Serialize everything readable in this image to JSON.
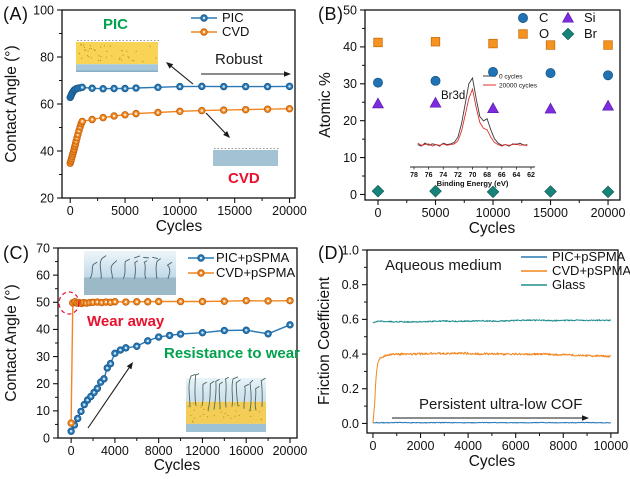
{
  "chart_data": [
    {
      "type": "line",
      "panel_label": "(A)",
      "xlabel": "Cycles",
      "ylabel": "Contact Angle (°)",
      "xlim": [
        -750,
        20500
      ],
      "ylim": [
        20,
        100
      ],
      "x_ticks": [
        0,
        5000,
        10000,
        15000,
        20000
      ],
      "x_tick_labels": [
        "0",
        "5000",
        "10000",
        "15000",
        "20000"
      ],
      "y_ticks": [
        20,
        40,
        60,
        80,
        100
      ],
      "y_tick_labels": [
        "20",
        "40",
        "60",
        "80",
        "100"
      ],
      "legend_position": "top-right-inside",
      "series": [
        {
          "name": "PIC",
          "style": "line-marker",
          "color": "#2878b5",
          "edge": "#1a5a8c",
          "center": "#cfe5f6",
          "points": [
            [
              0,
              62.8
            ],
            [
              60,
              63.4
            ],
            [
              120,
              64.1
            ],
            [
              200,
              64.8
            ],
            [
              280,
              65.4
            ],
            [
              360,
              65.9
            ],
            [
              450,
              66.2
            ],
            [
              550,
              66.5
            ],
            [
              700,
              66.7
            ],
            [
              900,
              66.9
            ],
            [
              1100,
              67.1
            ],
            [
              2000,
              66.7
            ],
            [
              3000,
              66.5
            ],
            [
              4000,
              66.6
            ],
            [
              5000,
              66.6
            ],
            [
              6000,
              66.8
            ],
            [
              8000,
              67.1
            ],
            [
              10000,
              67.4
            ],
            [
              12000,
              67.5
            ],
            [
              14000,
              67.4
            ],
            [
              16000,
              67.4
            ],
            [
              18000,
              67.4
            ],
            [
              20000,
              67.5
            ]
          ]
        },
        {
          "name": "CVD",
          "style": "line-marker",
          "color": "#f2861f",
          "edge": "#c05f0a",
          "center": "#fdecd8",
          "points": [
            [
              0,
              34.8
            ],
            [
              60,
              35.8
            ],
            [
              120,
              36.8
            ],
            [
              180,
              37.8
            ],
            [
              240,
              38.8
            ],
            [
              300,
              39.8
            ],
            [
              360,
              40.8
            ],
            [
              420,
              41.9
            ],
            [
              480,
              43
            ],
            [
              540,
              44.2
            ],
            [
              620,
              45.6
            ],
            [
              700,
              47
            ],
            [
              800,
              48.6
            ],
            [
              900,
              50.2
            ],
            [
              1000,
              51.6
            ],
            [
              1100,
              52.6
            ],
            [
              2000,
              53.4
            ],
            [
              3000,
              54.2
            ],
            [
              4000,
              54.9
            ],
            [
              5000,
              55.4
            ],
            [
              6000,
              55.9
            ],
            [
              8000,
              56.4
            ],
            [
              10000,
              56.9
            ],
            [
              12000,
              57.2
            ],
            [
              14000,
              57.4
            ],
            [
              16000,
              57.6
            ],
            [
              18000,
              57.8
            ],
            [
              20000,
              58
            ]
          ]
        }
      ],
      "annotations": [
        {
          "id": "a-pic",
          "text": "PIC",
          "color": "#00a24d"
        },
        {
          "id": "a-robust",
          "text": "Robust",
          "color": "#1a1a1a"
        },
        {
          "id": "a-cvd",
          "text": "CVD",
          "color": "#e8112d"
        }
      ]
    },
    {
      "type": "scatter",
      "panel_label": "(B)",
      "xlabel": "Cycles",
      "ylabel": "Atomic %",
      "xlim": [
        -1130,
        21040
      ],
      "ylim": [
        -1.5,
        50
      ],
      "x_ticks": [
        0,
        5000,
        10000,
        15000,
        20000
      ],
      "x_tick_labels": [
        "0",
        "5000",
        "10000",
        "15000",
        "20000"
      ],
      "y_ticks": [
        0,
        10,
        20,
        30,
        40,
        50
      ],
      "y_tick_labels": [
        "0",
        "10",
        "20",
        "30",
        "40",
        "50"
      ],
      "legend_position": "top-right-inside-grid",
      "series": [
        {
          "name": "C",
          "style": "scatter",
          "marker": "circle",
          "color": "#1f72b4",
          "edge": "#14507e",
          "x": [
            0,
            5000,
            10000,
            15000,
            20000
          ],
          "y": [
            30.3,
            30.8,
            33.2,
            32.9,
            32.3
          ]
        },
        {
          "name": "O",
          "style": "scatter",
          "marker": "square",
          "color": "#f6921e",
          "edge": "#c26708",
          "x": [
            0,
            5000,
            10000,
            15000,
            20000
          ],
          "y": [
            41.2,
            41.4,
            40.9,
            40.5,
            40.5
          ]
        },
        {
          "name": "Si",
          "style": "scatter",
          "marker": "triangle",
          "color": "#7d2de0",
          "edge": "#5a1bab",
          "x": [
            0,
            5000,
            10000,
            15000,
            20000
          ],
          "y": [
            24.6,
            24.8,
            23.3,
            23.2,
            24.0
          ]
        },
        {
          "name": "Br",
          "style": "scatter",
          "marker": "diamond",
          "color": "#18837a",
          "edge": "#0f5c55",
          "x": [
            0,
            5000,
            10000,
            15000,
            20000
          ],
          "y": [
            0.9,
            0.9,
            0.7,
            0.8,
            0.7
          ]
        }
      ],
      "annotations": [],
      "inset": {
        "label": "Br3d",
        "xlabel": "Binding Energy (eV)",
        "x_ticks": [
          78,
          76,
          74,
          72,
          70,
          68,
          66,
          64,
          62
        ],
        "legend": [
          "0 cycles",
          "20000 cycles"
        ],
        "colors": [
          "#3a3a3a",
          "#e03030"
        ],
        "x_start": 77.5,
        "x_step": -0.5,
        "series0": [
          0.1,
          0.08,
          0.12,
          0.09,
          0.11,
          0.1,
          0.08,
          0.12,
          0.1,
          0.11,
          0.13,
          0.2,
          0.38,
          0.65,
          0.92,
          1.0,
          0.72,
          0.48,
          0.42,
          0.45,
          0.3,
          0.18,
          0.12,
          0.09,
          0.1,
          0.08,
          0.11,
          0.1,
          0.12,
          0.09,
          0.1
        ],
        "series1": [
          0.12,
          0.09,
          0.1,
          0.11,
          0.08,
          0.1,
          0.09,
          0.11,
          0.09,
          0.1,
          0.11,
          0.15,
          0.28,
          0.5,
          0.72,
          0.85,
          0.6,
          0.4,
          0.32,
          0.3,
          0.2,
          0.13,
          0.1,
          0.08,
          0.1,
          0.09,
          0.1,
          0.11,
          0.09,
          0.1,
          0.08
        ]
      }
    },
    {
      "type": "line",
      "panel_label": "(C)",
      "xlabel": "Cycles",
      "ylabel": "Contact Angle (°)",
      "xlim": [
        -1200,
        20640
      ],
      "ylim": [
        0,
        70
      ],
      "x_ticks": [
        0,
        4000,
        8000,
        12000,
        16000,
        20000
      ],
      "x_tick_labels": [
        "0",
        "4000",
        "8000",
        "12000",
        "16000",
        "20000"
      ],
      "y_ticks": [
        0,
        10,
        20,
        30,
        40,
        50,
        60,
        70
      ],
      "y_tick_labels": [
        "0",
        "10",
        "20",
        "30",
        "40",
        "50",
        "60",
        "70"
      ],
      "legend_position": "top-right-inside",
      "series": [
        {
          "name": "PIC+pSPMA",
          "style": "line-marker",
          "color": "#2878b5",
          "edge": "#1a5a8c",
          "center": "#cfe5f6",
          "points": [
            [
              0,
              2.5
            ],
            [
              300,
              4.8
            ],
            [
              600,
              7.2
            ],
            [
              900,
              9.8
            ],
            [
              1200,
              12.3
            ],
            [
              1500,
              14
            ],
            [
              1800,
              15.3
            ],
            [
              2100,
              16.8
            ],
            [
              2400,
              18.3
            ],
            [
              2700,
              20.6
            ],
            [
              3000,
              21.8
            ],
            [
              3300,
              25.8
            ],
            [
              3600,
              27.4
            ],
            [
              4000,
              31.2
            ],
            [
              4500,
              32.4
            ],
            [
              5000,
              33.2
            ],
            [
              6000,
              33.8
            ],
            [
              7000,
              35.8
            ],
            [
              8000,
              37.2
            ],
            [
              9000,
              37.8
            ],
            [
              10000,
              38.3
            ],
            [
              12000,
              38.8
            ],
            [
              14000,
              39.6
            ],
            [
              16000,
              39.7
            ],
            [
              18000,
              38.4
            ],
            [
              20000,
              41.7
            ]
          ]
        },
        {
          "name": "CVD+pSPMA",
          "style": "line-marker",
          "color": "#f2861f",
          "edge": "#c05f0a",
          "center": "#fdecd8",
          "points": [
            [
              0,
              5.5
            ],
            [
              150,
              49.8
            ],
            [
              350,
              50.2
            ],
            [
              550,
              49.7
            ],
            [
              750,
              49.9
            ],
            [
              950,
              49.6
            ],
            [
              1150,
              49.9
            ],
            [
              1400,
              49.7
            ],
            [
              1700,
              49.9
            ],
            [
              2000,
              50
            ],
            [
              2400,
              50.1
            ],
            [
              2800,
              49.9
            ],
            [
              3200,
              50.1
            ],
            [
              3600,
              50
            ],
            [
              4000,
              50.2
            ],
            [
              5000,
              50.1
            ],
            [
              6000,
              50.2
            ],
            [
              7000,
              50.2
            ],
            [
              8000,
              50.3
            ],
            [
              10000,
              50.3
            ],
            [
              12000,
              50.3
            ],
            [
              14000,
              50.4
            ],
            [
              16000,
              50.6
            ],
            [
              18000,
              50.5
            ],
            [
              20000,
              50.6
            ]
          ]
        }
      ],
      "annotations": [
        {
          "id": "c-wear",
          "text": "Wear away",
          "color": "#e8112d"
        },
        {
          "id": "c-resist",
          "text": "Resistance to wear",
          "color": "#00a24d"
        }
      ]
    },
    {
      "type": "line",
      "panel_label": "(D)",
      "xlabel": "Cycles",
      "ylabel": "Friction Coefficient",
      "xlim": [
        -250,
        10300
      ],
      "ylim": [
        -0.055,
        1.0
      ],
      "x_ticks": [
        0,
        2000,
        4000,
        6000,
        8000,
        10000
      ],
      "x_tick_labels": [
        "0",
        "2000",
        "4000",
        "6000",
        "8000",
        "10000"
      ],
      "y_ticks": [
        0.0,
        0.2,
        0.4,
        0.6,
        0.8,
        1.0
      ],
      "y_tick_labels": [
        "0.0",
        "0.2",
        "0.4",
        "0.6",
        "0.8",
        "1.0"
      ],
      "legend_position": "top-right-inside",
      "series": [
        {
          "name": "PIC+pSPMA",
          "style": "line",
          "color": "#2878b5",
          "noise": 0.002,
          "points": [
            [
              0,
              0.005
            ],
            [
              500,
              0.004
            ],
            [
              1000,
              0.005
            ],
            [
              2000,
              0.004
            ],
            [
              3000,
              0.005
            ],
            [
              4000,
              0.004
            ],
            [
              5000,
              0.005
            ],
            [
              6000,
              0.004
            ],
            [
              7000,
              0.005
            ],
            [
              8000,
              0.004
            ],
            [
              9000,
              0.005
            ],
            [
              10000,
              0.004
            ]
          ]
        },
        {
          "name": "CVD+pSPMA",
          "style": "line",
          "color": "#f2861f",
          "noise": 0.006,
          "points": [
            [
              0,
              0.01
            ],
            [
              60,
              0.09
            ],
            [
              110,
              0.22
            ],
            [
              160,
              0.31
            ],
            [
              220,
              0.355
            ],
            [
              300,
              0.375
            ],
            [
              400,
              0.385
            ],
            [
              550,
              0.392
            ],
            [
              700,
              0.396
            ],
            [
              900,
              0.399
            ],
            [
              1200,
              0.4
            ],
            [
              1600,
              0.401
            ],
            [
              2000,
              0.401
            ],
            [
              2500,
              0.403
            ],
            [
              3000,
              0.403
            ],
            [
              3500,
              0.405
            ],
            [
              4000,
              0.404
            ],
            [
              4500,
              0.401
            ],
            [
              5000,
              0.402
            ],
            [
              5500,
              0.399
            ],
            [
              6000,
              0.401
            ],
            [
              6500,
              0.397
            ],
            [
              7000,
              0.4
            ],
            [
              7500,
              0.398
            ],
            [
              8000,
              0.396
            ],
            [
              8500,
              0.394
            ],
            [
              9000,
              0.392
            ],
            [
              9500,
              0.39
            ],
            [
              10000,
              0.386
            ]
          ]
        },
        {
          "name": "Glass",
          "style": "line",
          "color": "#1f8e8e",
          "noise": 0.0035,
          "points": [
            [
              0,
              0.583
            ],
            [
              300,
              0.59
            ],
            [
              600,
              0.588
            ],
            [
              1000,
              0.586
            ],
            [
              1500,
              0.585
            ],
            [
              2000,
              0.587
            ],
            [
              2500,
              0.589
            ],
            [
              3000,
              0.591
            ],
            [
              3500,
              0.589
            ],
            [
              4000,
              0.59
            ],
            [
              4500,
              0.592
            ],
            [
              5000,
              0.59
            ],
            [
              5500,
              0.591
            ],
            [
              6000,
              0.594
            ],
            [
              6500,
              0.596
            ],
            [
              7000,
              0.595
            ],
            [
              7500,
              0.593
            ],
            [
              8000,
              0.594
            ],
            [
              8500,
              0.595
            ],
            [
              9000,
              0.594
            ],
            [
              9500,
              0.595
            ],
            [
              10000,
              0.594
            ]
          ]
        }
      ],
      "annotations": [
        {
          "id": "d-aqueous",
          "text": "Aqueous medium",
          "color": "#1a1a1a"
        },
        {
          "id": "d-cof",
          "text": "Persistent ultra-low COF",
          "color": "#1a1a1a"
        }
      ]
    }
  ]
}
